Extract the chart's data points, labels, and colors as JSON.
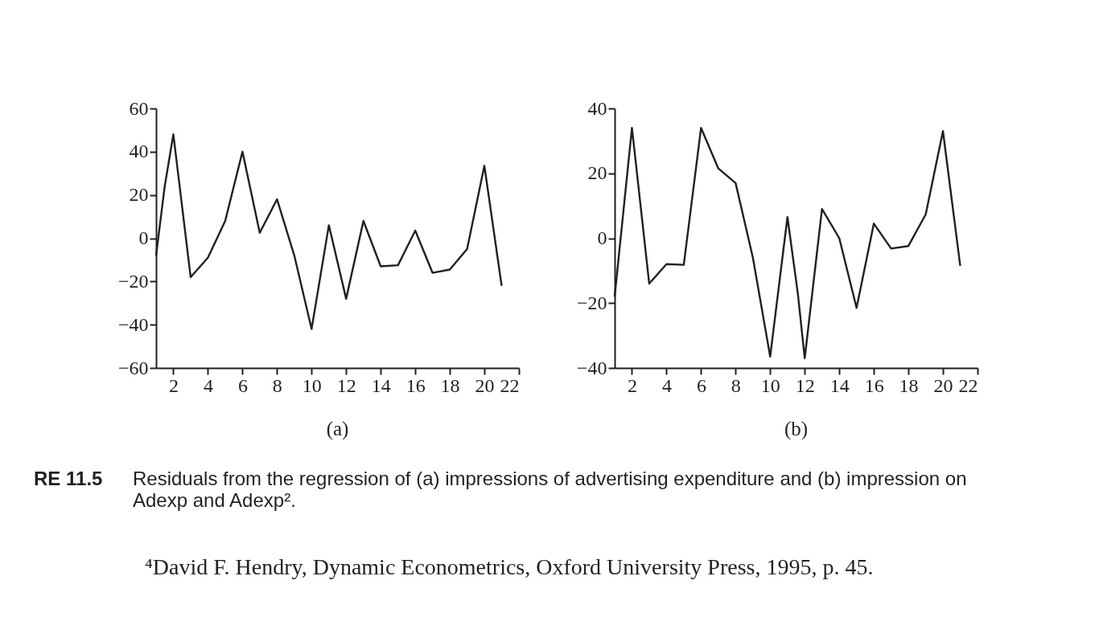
{
  "chart_data": [
    {
      "type": "line",
      "title": "(a)",
      "color": "#231f20",
      "line_style": "solid",
      "x": [
        1,
        1.5,
        2,
        3,
        4,
        5,
        6,
        7,
        8,
        9,
        10,
        11,
        12,
        13,
        14,
        15,
        16,
        17,
        18,
        19,
        20,
        21
      ],
      "values": [
        -8,
        24,
        48,
        -18,
        -9,
        8,
        40,
        2.5,
        18,
        -8,
        -42,
        6,
        -28,
        8,
        -13,
        -12.5,
        3.5,
        -16,
        -14.5,
        -5,
        33.5,
        -22
      ],
      "xlim": [
        1,
        22
      ],
      "xticks": [
        2,
        4,
        6,
        8,
        10,
        12,
        14,
        16,
        18,
        20,
        22
      ],
      "ylim": [
        -60,
        60
      ],
      "yticks": [
        {
          "value": -60,
          "label": "−60"
        },
        {
          "value": -40,
          "label": "−40"
        },
        {
          "value": -20,
          "label": "−20"
        },
        0,
        20,
        40,
        60
      ],
      "annotations": [
        "RE 11.5",
        "Residuals from the regression of (a) impressions of advertising expenditure and (b) impression on Adexp and Adexp².",
        "⁴David F. Hendry, Dynamic Econometrics, Oxford University Press, 1995, p. 45."
      ]
    },
    {
      "type": "line",
      "title": "(b)",
      "color": "#231f20",
      "line_style": "solid",
      "x": [
        1,
        2,
        3,
        4,
        5,
        6,
        7,
        8,
        9,
        10,
        11,
        11.6,
        12,
        13,
        14,
        15,
        16,
        17,
        18,
        19,
        20,
        21
      ],
      "values": [
        -18,
        34,
        -14,
        -8,
        -8.2,
        34,
        21.5,
        17,
        -6,
        -36.5,
        6.5,
        -17,
        -37,
        9,
        0,
        -21.5,
        4.5,
        -3.2,
        -2.4,
        7.3,
        33,
        -8.5
      ],
      "xlim": [
        1,
        22
      ],
      "xticks": [
        2,
        4,
        6,
        8,
        10,
        12,
        14,
        16,
        18,
        20,
        22
      ],
      "ylim": [
        -40,
        40
      ],
      "yticks": [
        {
          "value": -40,
          "label": "−40"
        },
        {
          "value": -20,
          "label": "−20"
        },
        0,
        20,
        40
      ]
    }
  ]
}
